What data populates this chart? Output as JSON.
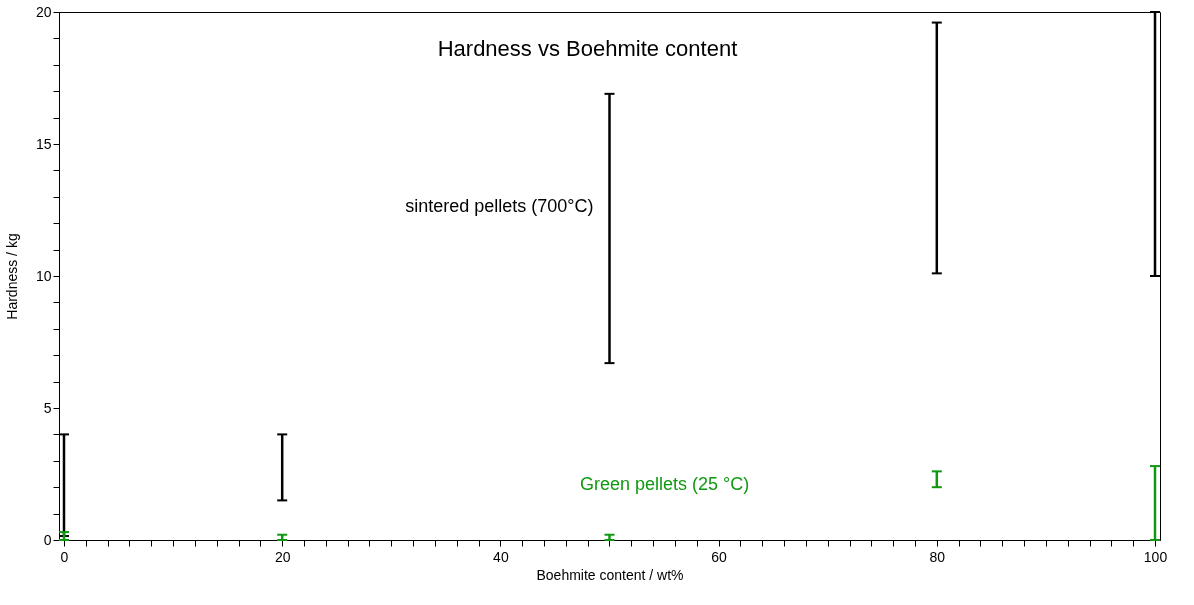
{
  "chart_data": {
    "type": "bar",
    "title": "Hardness vs Boehmite content",
    "xlabel": "Boehmite content / wt%",
    "ylabel": "Hardness / kg",
    "x": [
      0,
      20,
      50,
      80,
      100
    ],
    "series": [
      {
        "name": "sintered pellets (700°C)",
        "color": "#000000",
        "base": [
          0.15,
          1.5,
          6.7,
          10.1,
          10.0
        ],
        "values": [
          3.85,
          2.5,
          10.2,
          9.5,
          10.0
        ]
      },
      {
        "name": "Green pellets (25 °C)",
        "color": "#109910",
        "base": [
          0.0,
          0.0,
          0.0,
          2.0,
          0.0
        ],
        "values": [
          0.3,
          0.2,
          0.2,
          0.6,
          2.8
        ]
      }
    ],
    "xlim": [
      0,
      100
    ],
    "ylim": [
      0,
      20
    ],
    "xticks": [
      0,
      {
        "value": 2,
        "label": null
      },
      {
        "value": 4,
        "label": null
      },
      {
        "value": 6,
        "label": null
      },
      {
        "value": 8,
        "label": null
      },
      {
        "value": 10,
        "label": null
      },
      {
        "value": 12,
        "label": null
      },
      {
        "value": 14,
        "label": null
      },
      {
        "value": 16,
        "label": null
      },
      {
        "value": 18,
        "label": null
      },
      20,
      {
        "value": 22,
        "label": null
      },
      {
        "value": 24,
        "label": null
      },
      {
        "value": 26,
        "label": null
      },
      {
        "value": 28,
        "label": null
      },
      {
        "value": 30,
        "label": null
      },
      {
        "value": 32,
        "label": null
      },
      {
        "value": 34,
        "label": null
      },
      {
        "value": 36,
        "label": null
      },
      {
        "value": 38,
        "label": null
      },
      40,
      {
        "value": 42,
        "label": null
      },
      {
        "value": 44,
        "label": null
      },
      {
        "value": 46,
        "label": null
      },
      {
        "value": 48,
        "label": null
      },
      {
        "value": 50,
        "label": null
      },
      {
        "value": 52,
        "label": null
      },
      {
        "value": 54,
        "label": null
      },
      {
        "value": 56,
        "label": null
      },
      {
        "value": 58,
        "label": null
      },
      60,
      {
        "value": 62,
        "label": null
      },
      {
        "value": 64,
        "label": null
      },
      {
        "value": 66,
        "label": null
      },
      {
        "value": 68,
        "label": null
      },
      {
        "value": 70,
        "label": null
      },
      {
        "value": 72,
        "label": null
      },
      {
        "value": 74,
        "label": null
      },
      {
        "value": 76,
        "label": null
      },
      {
        "value": 78,
        "label": null
      },
      80,
      {
        "value": 82,
        "label": null
      },
      {
        "value": 84,
        "label": null
      },
      {
        "value": 86,
        "label": null
      },
      {
        "value": 88,
        "label": null
      },
      {
        "value": 90,
        "label": null
      },
      {
        "value": 92,
        "label": null
      },
      {
        "value": 94,
        "label": null
      },
      {
        "value": 96,
        "label": null
      },
      {
        "value": 98,
        "label": null
      },
      100
    ],
    "yticks": [
      0,
      {
        "value": 1,
        "label": null
      },
      {
        "value": 2,
        "label": null
      },
      {
        "value": 3,
        "label": null
      },
      {
        "value": 4,
        "label": null
      },
      5,
      {
        "value": 6,
        "label": null
      },
      {
        "value": 7,
        "label": null
      },
      {
        "value": 8,
        "label": null
      },
      {
        "value": 9,
        "label": null
      },
      10,
      {
        "value": 11,
        "label": null
      },
      {
        "value": 12,
        "label": null
      },
      {
        "value": 13,
        "label": null
      },
      {
        "value": 14,
        "label": null
      },
      15,
      {
        "value": 16,
        "label": null
      },
      {
        "value": 17,
        "label": null
      },
      {
        "value": 18,
        "label": null
      },
      {
        "value": 19,
        "label": null
      },
      20
    ],
    "grid": false
  }
}
